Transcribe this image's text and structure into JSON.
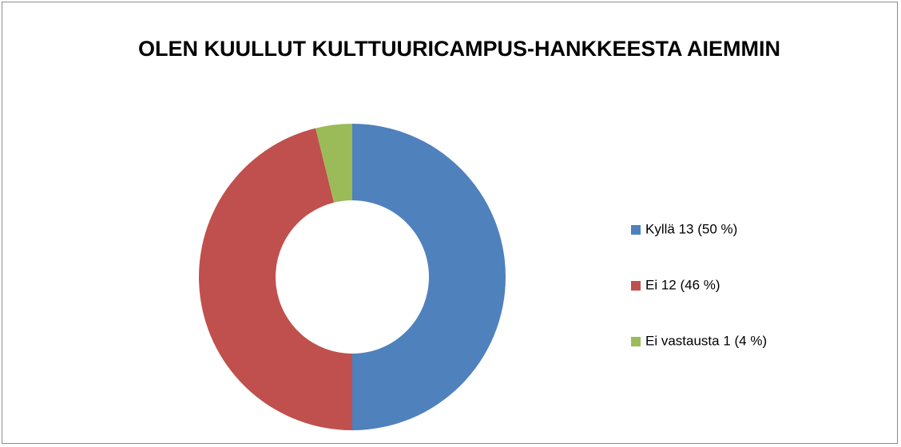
{
  "chart_data": {
    "type": "donut",
    "title": "OLEN KUULLUT KULTTUURICAMPUS-HANKKEESTA AIEMMIN",
    "categories": [
      "Kyllä 13 (50 %)",
      "Ei 12 (46 %)",
      "Ei vastausta 1 (4 %)"
    ],
    "values": [
      13,
      12,
      1
    ],
    "colors": [
      "#4f81bd",
      "#c0504d",
      "#9bbb59"
    ],
    "legend": "right"
  }
}
